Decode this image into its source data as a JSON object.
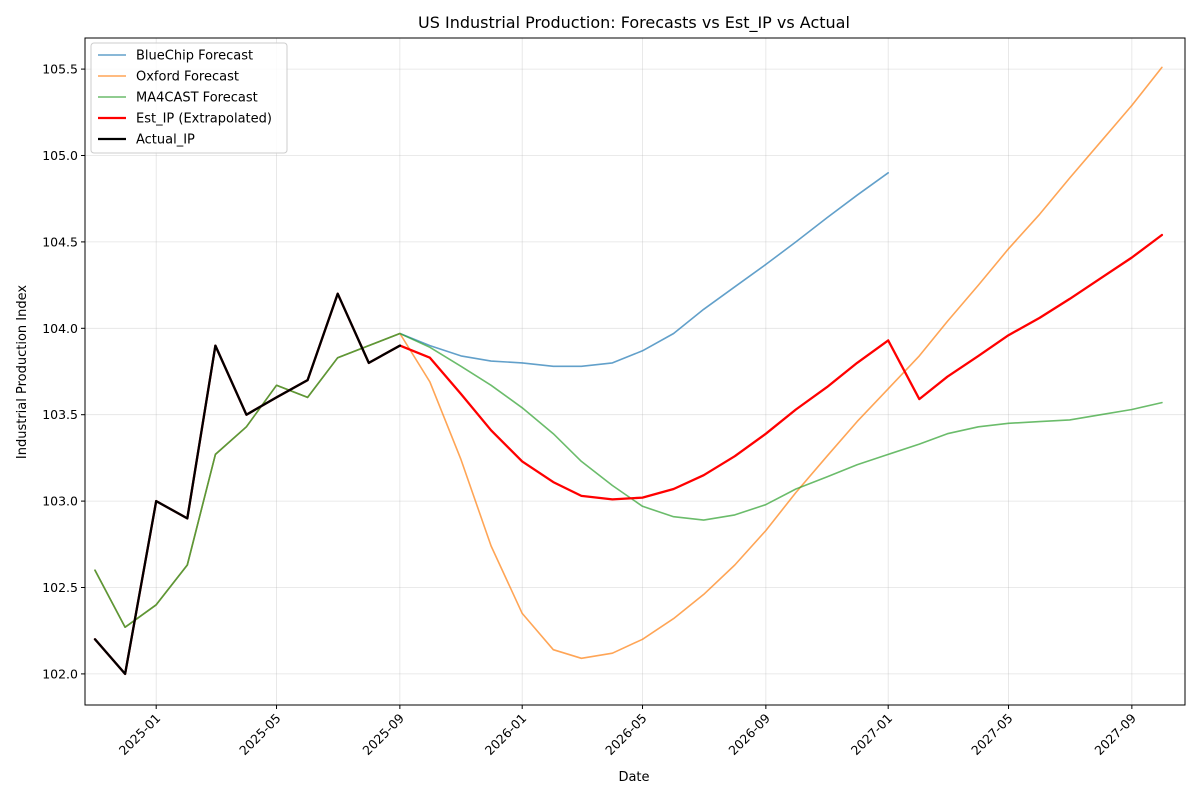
{
  "chart_data": {
    "type": "line",
    "title": "US Industrial Production: Forecasts vs Est_IP vs Actual",
    "xlabel": "Date",
    "ylabel": "Industrial Production Index",
    "xlim": [
      "2024-10-22",
      "2027-10-24"
    ],
    "ylim": [
      101.82,
      105.68
    ],
    "grid": true,
    "legend_position": "top-left",
    "x_ticks": [
      "2025-01",
      "2025-05",
      "2025-09",
      "2026-01",
      "2026-05",
      "2026-09",
      "2027-01",
      "2027-05",
      "2027-09"
    ],
    "y_ticks": [
      "102.0",
      "102.5",
      "103.0",
      "103.5",
      "104.0",
      "104.5",
      "105.0",
      "105.5"
    ],
    "dates": [
      "2024-11-01",
      "2024-12-01",
      "2025-01-01",
      "2025-02-01",
      "2025-03-01",
      "2025-04-01",
      "2025-05-01",
      "2025-06-01",
      "2025-07-01",
      "2025-08-01",
      "2025-09-01",
      "2025-10-01",
      "2025-11-01",
      "2025-12-01",
      "2026-01-01",
      "2026-02-01",
      "2026-03-01",
      "2026-04-01",
      "2026-05-01",
      "2026-06-01",
      "2026-07-01",
      "2026-08-01",
      "2026-09-01",
      "2026-10-01",
      "2026-11-01",
      "2026-12-01",
      "2027-01-01",
      "2027-02-01",
      "2027-03-01",
      "2027-04-01",
      "2027-05-01",
      "2027-06-01",
      "2027-07-01",
      "2027-08-01",
      "2027-09-01",
      "2027-10-01"
    ],
    "series": [
      {
        "name": "BlueChip Forecast",
        "color": "#1f77b4",
        "opacity": 0.7,
        "width": 1.6,
        "values": [
          102.6,
          102.27,
          102.4,
          102.63,
          103.27,
          103.43,
          103.67,
          103.6,
          103.83,
          103.9,
          103.97,
          103.9,
          103.84,
          103.81,
          103.8,
          103.78,
          103.78,
          103.8,
          103.87,
          103.97,
          104.11,
          104.24,
          104.37,
          104.5,
          104.64,
          104.77,
          104.9,
          null,
          null,
          null,
          null,
          null,
          null,
          null,
          null,
          null
        ]
      },
      {
        "name": "Oxford Forecast",
        "color": "#ff7f0e",
        "opacity": 0.7,
        "width": 1.6,
        "values": [
          102.6,
          102.27,
          102.4,
          102.63,
          103.27,
          103.43,
          103.67,
          103.6,
          103.83,
          103.9,
          103.97,
          103.69,
          103.24,
          102.74,
          102.35,
          102.14,
          102.09,
          102.12,
          102.2,
          102.32,
          102.46,
          102.63,
          102.83,
          103.05,
          103.26,
          103.46,
          103.65,
          103.84,
          104.04,
          104.25,
          104.46,
          104.66,
          104.87,
          105.08,
          105.29,
          105.51
        ]
      },
      {
        "name": "MA4CAST Forecast",
        "color": "#2ca02c",
        "opacity": 0.7,
        "width": 1.6,
        "values": [
          102.6,
          102.27,
          102.4,
          102.63,
          103.27,
          103.43,
          103.67,
          103.6,
          103.83,
          103.9,
          103.97,
          103.89,
          103.78,
          103.67,
          103.54,
          103.39,
          103.23,
          103.09,
          102.97,
          102.91,
          102.89,
          102.92,
          102.98,
          103.07,
          103.14,
          103.21,
          103.27,
          103.33,
          103.39,
          103.43,
          103.45,
          103.46,
          103.47,
          103.5,
          103.53,
          103.57
        ]
      },
      {
        "name": "Est_IP (Extrapolated)",
        "color": "#ff0000",
        "opacity": 1,
        "width": 2.3,
        "values": [
          102.2,
          102.0,
          103.0,
          102.9,
          103.9,
          103.5,
          103.6,
          103.7,
          104.2,
          103.8,
          103.9,
          103.83,
          103.62,
          103.41,
          103.23,
          103.11,
          103.03,
          103.01,
          103.02,
          103.07,
          103.15,
          103.26,
          103.39,
          103.53,
          103.66,
          103.8,
          103.93,
          103.59,
          103.72,
          103.84,
          103.96,
          104.06,
          104.17,
          104.29,
          104.41,
          104.54
        ]
      },
      {
        "name": "Actual_IP",
        "color": "#000000",
        "opacity": 1,
        "width": 2.3,
        "values": [
          102.2,
          102.0,
          103.0,
          102.9,
          103.9,
          103.5,
          103.6,
          103.7,
          104.2,
          103.8,
          103.9,
          null,
          null,
          null,
          null,
          null,
          null,
          null,
          null,
          null,
          null,
          null,
          null,
          null,
          null,
          null,
          null,
          null,
          null,
          null,
          null,
          null,
          null,
          null,
          null,
          null
        ]
      }
    ]
  }
}
